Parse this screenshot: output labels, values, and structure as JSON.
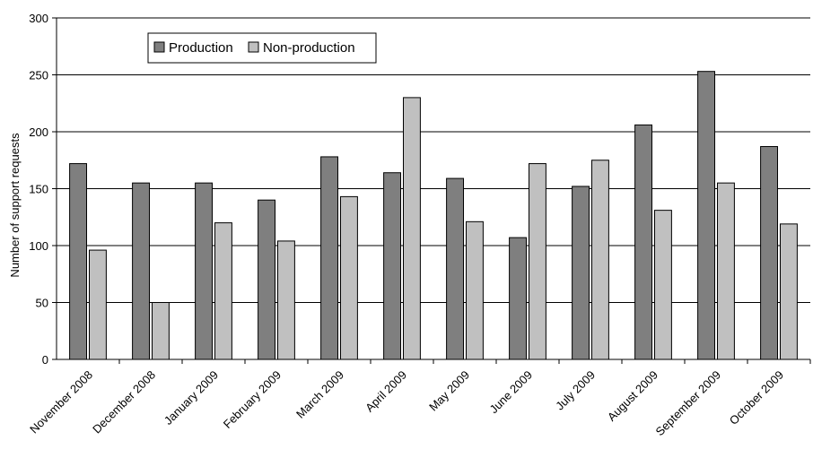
{
  "chart_data": {
    "type": "bar",
    "title": "",
    "xlabel": "",
    "ylabel": "Number of support requests",
    "ylim": [
      0,
      300
    ],
    "yticks": [
      0,
      50,
      100,
      150,
      200,
      250,
      300
    ],
    "grid": true,
    "legend_position": "top-left",
    "categories": [
      "November 2008",
      "December 2008",
      "January 2009",
      "February 2009",
      "March 2009",
      "April 2009",
      "May 2009",
      "June 2009",
      "July 2009",
      "August 2009",
      "September 2009",
      "October 2009"
    ],
    "series": [
      {
        "name": "Production",
        "color": "#7f7f7f",
        "values": [
          172,
          155,
          155,
          140,
          178,
          164,
          159,
          107,
          152,
          206,
          253,
          187
        ]
      },
      {
        "name": "Non-production",
        "color": "#c0c0c0",
        "values": [
          96,
          50,
          120,
          104,
          143,
          230,
          121,
          172,
          175,
          131,
          155,
          119
        ]
      }
    ]
  }
}
